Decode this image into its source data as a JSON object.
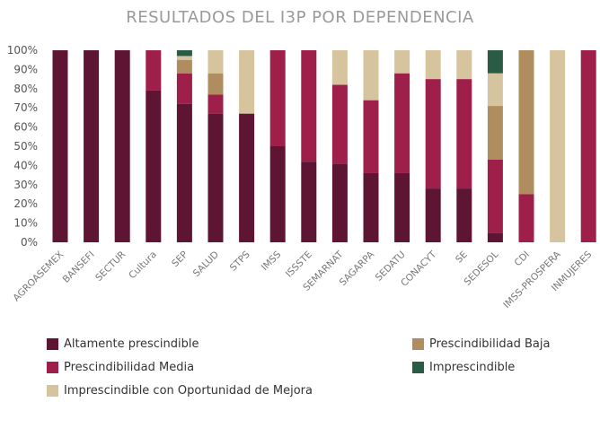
{
  "chart_data": {
    "type": "bar",
    "stacked": true,
    "title": "RESULTADOS DEL I3P POR DEPENDENCIA",
    "ylim": [
      0,
      100
    ],
    "ytick_labels": [
      "0%",
      "10%",
      "20%",
      "30%",
      "40%",
      "50%",
      "60%",
      "70%",
      "80%",
      "90%",
      "100%"
    ],
    "categories": [
      "AGROASEMEX",
      "BANSEFI",
      "SECTUR",
      "Cultura",
      "SEP",
      "SALUD",
      "STPS",
      "IMSS",
      "ISSSTE",
      "SEMARNAT",
      "SAGARPA",
      "SEDATU",
      "CONACYT",
      "SE",
      "SEDESOL",
      "CDI",
      "IMSS-PROSPERA",
      "INMUJERES"
    ],
    "series": [
      {
        "name": "Altamente prescindible",
        "color": "#5e1433",
        "values": [
          100,
          100,
          100,
          79,
          72,
          67,
          67,
          50,
          42,
          41,
          36,
          36,
          28,
          28,
          5,
          0,
          0,
          0
        ]
      },
      {
        "name": "Prescindibilidad Media",
        "color": "#9e1f4a",
        "values": [
          0,
          0,
          0,
          21,
          16,
          10,
          0,
          50,
          58,
          41,
          38,
          52,
          57,
          57,
          38,
          25,
          0,
          100
        ]
      },
      {
        "name": "Prescindibilidad Baja",
        "color": "#b08d5f",
        "values": [
          0,
          0,
          0,
          0,
          7,
          11,
          0,
          0,
          0,
          0,
          0,
          0,
          0,
          0,
          28,
          75,
          0,
          0
        ]
      },
      {
        "name": "Imprescindible con Oportunidad de Mejora",
        "color": "#d6c49e",
        "values": [
          0,
          0,
          0,
          0,
          2,
          12,
          33,
          0,
          0,
          18,
          26,
          12,
          15,
          15,
          17,
          0,
          100,
          0
        ]
      },
      {
        "name": "Imprescindible",
        "color": "#2a5c45",
        "values": [
          0,
          0,
          0,
          0,
          3,
          0,
          0,
          0,
          0,
          0,
          0,
          0,
          0,
          0,
          12,
          0,
          0,
          0
        ]
      }
    ],
    "legend": {
      "placement": "bottom",
      "order": [
        0,
        1,
        3,
        2,
        4
      ]
    }
  }
}
